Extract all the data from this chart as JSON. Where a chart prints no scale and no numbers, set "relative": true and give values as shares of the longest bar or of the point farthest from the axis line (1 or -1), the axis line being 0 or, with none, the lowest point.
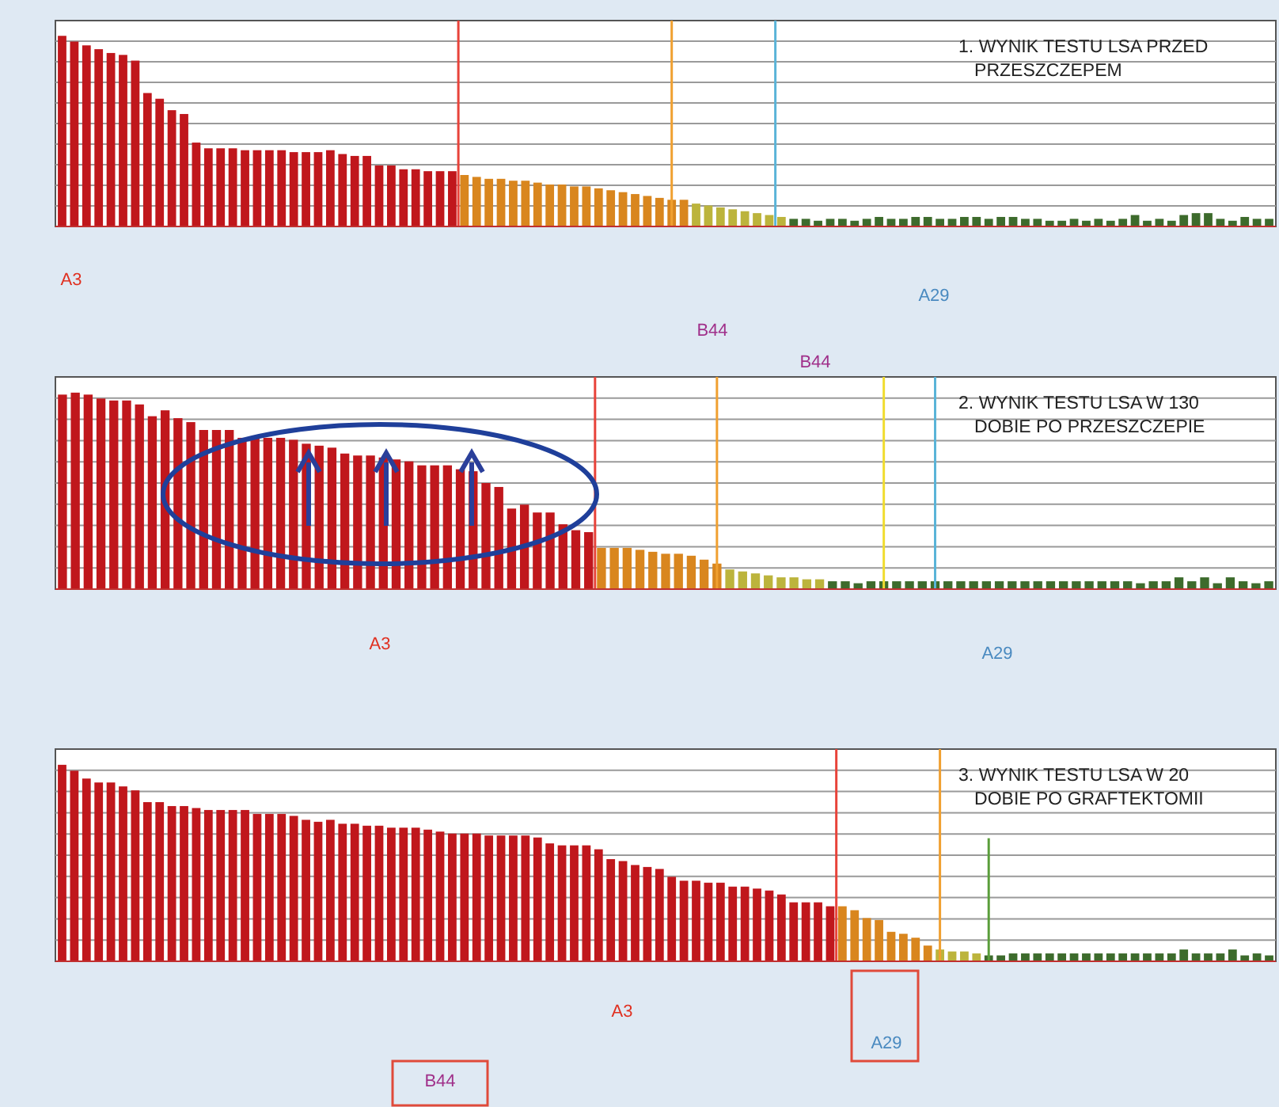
{
  "chart_data": [
    {
      "type": "bar",
      "title": "1. WYNIK TESTU LSA PRZED PRZESZCZEPEM",
      "relative": true,
      "grid": "y",
      "categories": [
        null,
        null,
        null,
        null,
        null,
        null,
        null,
        null,
        null,
        null,
        null,
        null,
        null,
        null,
        null,
        null,
        null,
        null,
        null,
        null,
        null,
        null,
        null,
        null,
        null,
        null,
        null,
        null,
        null,
        null,
        null,
        null,
        null,
        null,
        null,
        null,
        null,
        null,
        null,
        null,
        null,
        null,
        null,
        null,
        null,
        null,
        null,
        null,
        null,
        null,
        null,
        null,
        null,
        null,
        null,
        null,
        null,
        null,
        null,
        null,
        null,
        null,
        null,
        null,
        null,
        null,
        null,
        null,
        null,
        null,
        null,
        null,
        null,
        null,
        null,
        null,
        null,
        null,
        null,
        null,
        null,
        null,
        null,
        null,
        null,
        null,
        null,
        null,
        null,
        null,
        null,
        null,
        null,
        null,
        null,
        null,
        null,
        null,
        null,
        null
      ],
      "values": [
        1.0,
        0.97,
        0.95,
        0.93,
        0.91,
        0.9,
        0.87,
        0.7,
        0.67,
        0.61,
        0.59,
        0.44,
        0.41,
        0.41,
        0.41,
        0.4,
        0.4,
        0.4,
        0.4,
        0.39,
        0.39,
        0.39,
        0.4,
        0.38,
        0.37,
        0.37,
        0.32,
        0.32,
        0.3,
        0.3,
        0.29,
        0.29,
        0.29,
        0.27,
        0.26,
        0.25,
        0.25,
        0.24,
        0.24,
        0.23,
        0.22,
        0.22,
        0.21,
        0.21,
        0.2,
        0.19,
        0.18,
        0.17,
        0.16,
        0.15,
        0.14,
        0.14,
        0.12,
        0.11,
        0.1,
        0.09,
        0.08,
        0.07,
        0.06,
        0.05,
        0.04,
        0.04,
        0.03,
        0.04,
        0.04,
        0.03,
        0.04,
        0.05,
        0.04,
        0.04,
        0.05,
        0.05,
        0.04,
        0.04,
        0.05,
        0.05,
        0.04,
        0.05,
        0.05,
        0.04,
        0.04,
        0.03,
        0.03,
        0.04,
        0.03,
        0.04,
        0.03,
        0.04,
        0.06,
        0.03,
        0.04,
        0.03,
        0.06,
        0.07,
        0.07,
        0.04,
        0.03,
        0.05,
        0.04,
        0.04
      ],
      "colors": [
        "#c0171c",
        "#c0171c",
        "#c0171c",
        "#c0171c",
        "#c0171c",
        "#c0171c",
        "#c0171c",
        "#c0171c",
        "#c0171c",
        "#c0171c",
        "#c0171c",
        "#c0171c",
        "#c0171c",
        "#c0171c",
        "#c0171c",
        "#c0171c",
        "#c0171c",
        "#c0171c",
        "#c0171c",
        "#c0171c",
        "#c0171c",
        "#c0171c",
        "#c0171c",
        "#c0171c",
        "#c0171c",
        "#c0171c",
        "#c0171c",
        "#c0171c",
        "#c0171c",
        "#c0171c",
        "#c0171c",
        "#c0171c",
        "#c0171c",
        "#d9861e",
        "#d9861e",
        "#d9861e",
        "#d9861e",
        "#d9861e",
        "#d9861e",
        "#d9861e",
        "#d9861e",
        "#d9861e",
        "#d9861e",
        "#d9861e",
        "#d9861e",
        "#d9861e",
        "#d9861e",
        "#d9861e",
        "#d9861e",
        "#d9861e",
        "#d9861e",
        "#d9861e",
        "#bcb43c",
        "#bcb43c",
        "#bcb43c",
        "#bcb43c",
        "#bcb43c",
        "#bcb43c",
        "#bcb43c",
        "#bcb43c",
        "#3d6b2c",
        "#3d6b2c",
        "#3d6b2c",
        "#3d6b2c",
        "#3d6b2c",
        "#3d6b2c",
        "#3d6b2c",
        "#3d6b2c",
        "#3d6b2c",
        "#3d6b2c",
        "#3d6b2c",
        "#3d6b2c",
        "#3d6b2c",
        "#3d6b2c",
        "#3d6b2c",
        "#3d6b2c",
        "#3d6b2c",
        "#3d6b2c",
        "#3d6b2c",
        "#3d6b2c",
        "#3d6b2c",
        "#3d6b2c",
        "#3d6b2c",
        "#3d6b2c",
        "#3d6b2c",
        "#3d6b2c",
        "#3d6b2c",
        "#3d6b2c",
        "#3d6b2c",
        "#3d6b2c",
        "#3d6b2c",
        "#3d6b2c",
        "#3d6b2c",
        "#3d6b2c",
        "#3d6b2c",
        "#3d6b2c",
        "#3d6b2c",
        "#3d6b2c",
        "#3d6b2c",
        "#3d6b2c"
      ],
      "annotations": [
        "A3",
        "A29",
        "B44"
      ]
    },
    {
      "type": "bar",
      "title": "2. WYNIK TESTU LSA W 130 DOBIE PO PRZESZCZEPIE",
      "relative": true,
      "grid": "y",
      "categories": [
        null,
        null,
        null,
        null,
        null,
        null,
        null,
        null,
        null,
        null,
        null,
        null,
        null,
        null,
        null,
        null,
        null,
        null,
        null,
        null,
        null,
        null,
        null,
        null,
        null,
        null,
        null,
        null,
        null,
        null,
        null,
        null,
        null,
        null,
        null,
        null,
        null,
        null,
        null,
        null,
        null,
        null,
        null,
        null,
        null,
        null,
        null,
        null,
        null,
        null,
        null,
        null,
        null,
        null,
        null,
        null,
        null,
        null,
        null,
        null,
        null,
        null,
        null,
        null,
        null,
        null,
        null,
        null,
        null,
        null,
        null,
        null,
        null,
        null,
        null,
        null,
        null,
        null,
        null,
        null,
        null,
        null,
        null,
        null,
        null,
        null,
        null,
        null,
        null,
        null,
        null,
        null,
        null,
        null,
        null
      ],
      "values": [
        0.99,
        1.0,
        0.99,
        0.97,
        0.96,
        0.96,
        0.94,
        0.88,
        0.91,
        0.87,
        0.85,
        0.81,
        0.81,
        0.81,
        0.77,
        0.77,
        0.77,
        0.77,
        0.76,
        0.74,
        0.73,
        0.72,
        0.69,
        0.68,
        0.68,
        0.67,
        0.66,
        0.65,
        0.63,
        0.63,
        0.63,
        0.61,
        0.6,
        0.54,
        0.52,
        0.41,
        0.43,
        0.39,
        0.39,
        0.33,
        0.3,
        0.29,
        0.21,
        0.21,
        0.21,
        0.2,
        0.19,
        0.18,
        0.18,
        0.17,
        0.15,
        0.13,
        0.1,
        0.09,
        0.08,
        0.07,
        0.06,
        0.06,
        0.05,
        0.05,
        0.04,
        0.04,
        0.03,
        0.04,
        0.04,
        0.04,
        0.04,
        0.04,
        0.04,
        0.04,
        0.04,
        0.04,
        0.04,
        0.04,
        0.04,
        0.04,
        0.04,
        0.04,
        0.04,
        0.04,
        0.04,
        0.04,
        0.04,
        0.04,
        0.03,
        0.04,
        0.04,
        0.06,
        0.04,
        0.06,
        0.03,
        0.06,
        0.04,
        0.03,
        0.04
      ],
      "colors": [
        "#c0171c",
        "#c0171c",
        "#c0171c",
        "#c0171c",
        "#c0171c",
        "#c0171c",
        "#c0171c",
        "#c0171c",
        "#c0171c",
        "#c0171c",
        "#c0171c",
        "#c0171c",
        "#c0171c",
        "#c0171c",
        "#c0171c",
        "#c0171c",
        "#c0171c",
        "#c0171c",
        "#c0171c",
        "#c0171c",
        "#c0171c",
        "#c0171c",
        "#c0171c",
        "#c0171c",
        "#c0171c",
        "#c0171c",
        "#c0171c",
        "#c0171c",
        "#c0171c",
        "#c0171c",
        "#c0171c",
        "#c0171c",
        "#c0171c",
        "#c0171c",
        "#c0171c",
        "#c0171c",
        "#c0171c",
        "#c0171c",
        "#c0171c",
        "#c0171c",
        "#c0171c",
        "#c0171c",
        "#d9861e",
        "#d9861e",
        "#d9861e",
        "#d9861e",
        "#d9861e",
        "#d9861e",
        "#d9861e",
        "#d9861e",
        "#d9861e",
        "#d9861e",
        "#bcb43c",
        "#bcb43c",
        "#bcb43c",
        "#bcb43c",
        "#bcb43c",
        "#bcb43c",
        "#bcb43c",
        "#bcb43c",
        "#3d6b2c",
        "#3d6b2c",
        "#3d6b2c",
        "#3d6b2c",
        "#3d6b2c",
        "#3d6b2c",
        "#3d6b2c",
        "#3d6b2c",
        "#3d6b2c",
        "#3d6b2c",
        "#3d6b2c",
        "#3d6b2c",
        "#3d6b2c",
        "#3d6b2c",
        "#3d6b2c",
        "#3d6b2c",
        "#3d6b2c",
        "#3d6b2c",
        "#3d6b2c",
        "#3d6b2c",
        "#3d6b2c",
        "#3d6b2c",
        "#3d6b2c",
        "#3d6b2c",
        "#3d6b2c",
        "#3d6b2c",
        "#3d6b2c",
        "#3d6b2c",
        "#3d6b2c",
        "#3d6b2c",
        "#3d6b2c",
        "#3d6b2c",
        "#3d6b2c",
        "#3d6b2c",
        "#3d6b2c"
      ],
      "annotations": [
        "A3",
        "A29",
        "B44"
      ]
    },
    {
      "type": "bar",
      "title": "3. WYNIK TESTU LSA W 20 DOBIE PO GRAFTEKTOMII",
      "relative": true,
      "grid": "y",
      "categories": [
        null,
        null,
        null,
        null,
        null,
        null,
        null,
        null,
        null,
        null,
        null,
        null,
        null,
        null,
        null,
        null,
        null,
        null,
        null,
        null,
        null,
        null,
        null,
        null,
        null,
        null,
        null,
        null,
        null,
        null,
        null,
        null,
        null,
        null,
        null,
        null,
        null,
        null,
        null,
        null,
        null,
        null,
        null,
        null,
        null,
        null,
        null,
        null,
        null,
        null,
        null,
        null,
        null,
        null,
        null,
        null,
        null,
        null,
        null,
        null,
        null,
        null,
        null,
        null,
        null,
        null,
        null,
        null,
        null,
        null,
        null,
        null,
        null,
        null,
        null,
        null,
        null,
        null,
        null,
        null,
        null,
        null,
        null,
        null,
        null,
        null,
        null,
        null,
        null,
        null,
        null,
        null,
        null,
        null,
        null,
        null,
        null,
        null,
        null,
        null
      ],
      "values": [
        1.0,
        0.97,
        0.93,
        0.91,
        0.91,
        0.89,
        0.87,
        0.81,
        0.81,
        0.79,
        0.79,
        0.78,
        0.77,
        0.77,
        0.77,
        0.77,
        0.75,
        0.75,
        0.75,
        0.74,
        0.72,
        0.71,
        0.72,
        0.7,
        0.7,
        0.69,
        0.69,
        0.68,
        0.68,
        0.68,
        0.67,
        0.66,
        0.65,
        0.65,
        0.65,
        0.64,
        0.64,
        0.64,
        0.64,
        0.63,
        0.6,
        0.59,
        0.59,
        0.59,
        0.57,
        0.52,
        0.51,
        0.49,
        0.48,
        0.47,
        0.43,
        0.41,
        0.41,
        0.4,
        0.4,
        0.38,
        0.38,
        0.37,
        0.36,
        0.34,
        0.3,
        0.3,
        0.3,
        0.28,
        0.28,
        0.26,
        0.22,
        0.21,
        0.15,
        0.14,
        0.12,
        0.08,
        0.06,
        0.05,
        0.05,
        0.04,
        0.03,
        0.03,
        0.04,
        0.04,
        0.04,
        0.04,
        0.04,
        0.04,
        0.04,
        0.04,
        0.04,
        0.04,
        0.04,
        0.04,
        0.04,
        0.04,
        0.06,
        0.04,
        0.04,
        0.04,
        0.06,
        0.03,
        0.04,
        0.03
      ],
      "colors": [
        "#c0171c",
        "#c0171c",
        "#c0171c",
        "#c0171c",
        "#c0171c",
        "#c0171c",
        "#c0171c",
        "#c0171c",
        "#c0171c",
        "#c0171c",
        "#c0171c",
        "#c0171c",
        "#c0171c",
        "#c0171c",
        "#c0171c",
        "#c0171c",
        "#c0171c",
        "#c0171c",
        "#c0171c",
        "#c0171c",
        "#c0171c",
        "#c0171c",
        "#c0171c",
        "#c0171c",
        "#c0171c",
        "#c0171c",
        "#c0171c",
        "#c0171c",
        "#c0171c",
        "#c0171c",
        "#c0171c",
        "#c0171c",
        "#c0171c",
        "#c0171c",
        "#c0171c",
        "#c0171c",
        "#c0171c",
        "#c0171c",
        "#c0171c",
        "#c0171c",
        "#c0171c",
        "#c0171c",
        "#c0171c",
        "#c0171c",
        "#c0171c",
        "#c0171c",
        "#c0171c",
        "#c0171c",
        "#c0171c",
        "#c0171c",
        "#c0171c",
        "#c0171c",
        "#c0171c",
        "#c0171c",
        "#c0171c",
        "#c0171c",
        "#c0171c",
        "#c0171c",
        "#c0171c",
        "#c0171c",
        "#c0171c",
        "#c0171c",
        "#c0171c",
        "#c0171c",
        "#d9861e",
        "#d9861e",
        "#d9861e",
        "#d9861e",
        "#d9861e",
        "#d9861e",
        "#d9861e",
        "#d9861e",
        "#bcb43c",
        "#bcb43c",
        "#bcb43c",
        "#bcb43c",
        "#3d6b2c",
        "#3d6b2c",
        "#3d6b2c",
        "#3d6b2c",
        "#3d6b2c",
        "#3d6b2c",
        "#3d6b2c",
        "#3d6b2c",
        "#3d6b2c",
        "#3d6b2c",
        "#3d6b2c",
        "#3d6b2c",
        "#3d6b2c",
        "#3d6b2c",
        "#3d6b2c",
        "#3d6b2c",
        "#3d6b2c",
        "#3d6b2c",
        "#3d6b2c",
        "#3d6b2c",
        "#3d6b2c",
        "#3d6b2c",
        "#3d6b2c",
        "#3d6b2c"
      ],
      "annotations": [
        "A3",
        "A29",
        "B44"
      ]
    }
  ]
}
